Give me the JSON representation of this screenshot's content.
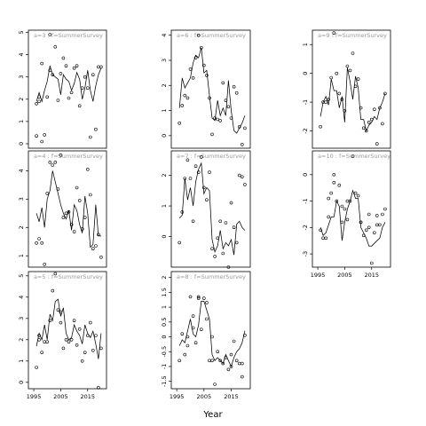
{
  "figure": {
    "xlabel": "Year",
    "xticks": [
      1995,
      2005,
      2015
    ]
  },
  "chart_data": [
    {
      "type": "line",
      "title": "a=3 : f=SummerSurvey",
      "xlim": [
        1993,
        2022
      ],
      "ylim": [
        -0.2,
        5.1
      ],
      "yticks": [
        0,
        1,
        2,
        3,
        4,
        5
      ],
      "series": [
        {
          "style": "line",
          "x": [
            1996,
            1997,
            1998,
            1999,
            2000,
            2001,
            2002,
            2003,
            2004,
            2005,
            2006,
            2007,
            2008,
            2009,
            2010,
            2011,
            2012,
            2013,
            2014,
            2015,
            2016,
            2017,
            2018,
            2019,
            2020
          ],
          "y": [
            1.9,
            2.3,
            1.9,
            2.4,
            2.8,
            3.5,
            3.1,
            3.0,
            2.9,
            2.2,
            3.1,
            2.9,
            2.8,
            2.4,
            2.7,
            3.2,
            2.9,
            2.0,
            2.5,
            3.3,
            2.4,
            1.9,
            2.6,
            3.1,
            3.4
          ]
        },
        {
          "style": "points",
          "x": [
            1996,
            1997,
            1998,
            1999,
            2000,
            2001,
            2002,
            2003,
            2004,
            2005,
            2006,
            2007,
            2008,
            2009,
            2010,
            2011,
            2012,
            2013,
            2014,
            2015,
            2016,
            2017,
            2018,
            2019,
            2020,
            1996,
            1997,
            1998,
            2001
          ],
          "y": [
            0.35,
            1.9,
            0.1,
            0.4,
            2.1,
            4.9,
            3.1,
            4.35,
            1.95,
            3.15,
            3.85,
            3.5,
            2.05,
            2.3,
            3.4,
            3.5,
            1.7,
            2.5,
            3.0,
            2.5,
            0.3,
            3.1,
            0.65,
            3.45,
            3.45,
            1.8,
            2.1,
            3.6,
            3.3
          ]
        }
      ]
    },
    {
      "type": "line",
      "title": "a=4 : f=SummerSurvey",
      "xlim": [
        1993,
        2022
      ],
      "ylim": [
        0.6,
        4.7
      ],
      "yticks": [
        1,
        2,
        3,
        4
      ],
      "series": [
        {
          "style": "line",
          "x": [
            1996,
            1997,
            1998,
            1999,
            2000,
            2001,
            2002,
            2003,
            2004,
            2005,
            2006,
            2007,
            2008,
            2009,
            2010,
            2011,
            2012,
            2013,
            2014,
            2015,
            2016,
            2017,
            2018,
            2019,
            2020
          ],
          "y": [
            2.5,
            2.2,
            2.7,
            2.0,
            3.0,
            3.3,
            4.0,
            3.6,
            3.2,
            2.8,
            2.5,
            2.3,
            2.6,
            1.9,
            2.8,
            2.6,
            2.1,
            1.8,
            3.1,
            2.5,
            1.3,
            1.4,
            2.8,
            1.7,
            1.7
          ]
        },
        {
          "style": "points",
          "x": [
            1996,
            1997,
            1998,
            1999,
            2000,
            2001,
            2002,
            2003,
            2004,
            2005,
            2006,
            2007,
            2008,
            2009,
            2010,
            2011,
            2012,
            2013,
            2014,
            2015,
            2016,
            2017,
            2018,
            2019,
            2020
          ],
          "y": [
            1.45,
            1.6,
            1.45,
            0.7,
            3.2,
            4.3,
            4.2,
            4.3,
            3.35,
            4.55,
            2.35,
            2.5,
            2.55,
            2.1,
            1.85,
            3.4,
            2.95,
            1.95,
            2.35,
            4.05,
            3.15,
            1.25,
            1.35,
            1.75,
            0.95
          ]
        }
      ]
    },
    {
      "type": "line",
      "title": "a=5 : f=SummerSurvey",
      "xlim": [
        1993,
        2022
      ],
      "ylim": [
        -0.3,
        5.2
      ],
      "yticks": [
        0,
        1,
        2,
        3,
        4,
        5
      ],
      "series": [
        {
          "style": "line",
          "x": [
            1996,
            1997,
            1998,
            1999,
            2000,
            2001,
            2002,
            2003,
            2004,
            2005,
            2006,
            2007,
            2008,
            2009,
            2010,
            2011,
            2012,
            2013,
            2014,
            2015,
            2016,
            2017,
            2018,
            2019,
            2020
          ],
          "y": [
            1.7,
            2.3,
            2.0,
            2.7,
            2.0,
            3.2,
            2.9,
            3.8,
            3.9,
            3.1,
            3.5,
            2.3,
            2.0,
            2.1,
            2.7,
            2.4,
            2.2,
            1.8,
            2.7,
            2.3,
            2.1,
            2.4,
            1.8,
            1.1,
            2.3
          ]
        },
        {
          "style": "points",
          "x": [
            1996,
            1997,
            1998,
            1999,
            2000,
            2001,
            2002,
            2003,
            2004,
            2005,
            2006,
            2007,
            2008,
            2009,
            2010,
            2011,
            2012,
            2013,
            2014,
            2015,
            2016,
            2017,
            2018,
            2019,
            2020,
            1997,
            2005
          ],
          "y": [
            0.7,
            2.0,
            1.4,
            1.9,
            1.9,
            2.9,
            4.3,
            5.1,
            3.4,
            3.3,
            1.6,
            2.0,
            1.9,
            2.0,
            2.9,
            1.75,
            2.5,
            1.0,
            1.4,
            2.2,
            2.8,
            1.5,
            2.2,
            -0.25,
            1.6,
            2.2,
            2.8
          ]
        }
      ]
    },
    {
      "type": "line",
      "title": "a=6 : f=SummerSurvey",
      "xlim": [
        1993,
        2022
      ],
      "ylim": [
        -0.5,
        4.2
      ],
      "yticks": [
        0,
        1,
        2,
        3,
        4
      ],
      "series": [
        {
          "style": "line",
          "x": [
            1996,
            1997,
            1998,
            1999,
            2000,
            2001,
            2002,
            2003,
            2004,
            2005,
            2006,
            2007,
            2008,
            2009,
            2010,
            2011,
            2012,
            2013,
            2014,
            2015,
            2016,
            2017,
            2018,
            2019,
            2020
          ],
          "y": [
            1.1,
            2.3,
            1.9,
            2.1,
            2.3,
            2.9,
            3.2,
            3.1,
            3.5,
            2.5,
            2.6,
            1.6,
            0.7,
            0.6,
            1.4,
            0.8,
            1.1,
            0.8,
            2.2,
            1.0,
            0.2,
            0.1,
            0.3,
            0.5,
            0.8
          ]
        },
        {
          "style": "points",
          "x": [
            1996,
            1997,
            1998,
            1999,
            2000,
            2001,
            2002,
            2003,
            2004,
            2005,
            2006,
            2007,
            2008,
            2009,
            2010,
            2011,
            2012,
            2013,
            2014,
            2015,
            2016,
            2017,
            2018,
            2019,
            2020
          ],
          "y": [
            0.5,
            1.2,
            1.6,
            1.5,
            2.65,
            2.3,
            3.1,
            4.0,
            3.5,
            2.8,
            2.4,
            1.5,
            0.05,
            0.7,
            0.65,
            0.6,
            2.1,
            1.4,
            1.15,
            0.7,
            1.95,
            1.7,
            0.35,
            -0.35,
            0.3
          ]
        }
      ]
    },
    {
      "type": "line",
      "title": "a=7 : f=SummerSurvey",
      "xlim": [
        1993,
        2022
      ],
      "ylim": [
        -1.0,
        2.8
      ],
      "yticks": [
        0,
        1,
        2
      ],
      "series": [
        {
          "style": "line",
          "x": [
            1996,
            1997,
            1998,
            1999,
            2000,
            2001,
            2002,
            2003,
            2004,
            2005,
            2006,
            2007,
            2008,
            2009,
            2010,
            2011,
            2012,
            2013,
            2014,
            2015,
            2016,
            2017,
            2018,
            2019,
            2020
          ],
          "y": [
            0.6,
            0.7,
            1.9,
            1.2,
            1.6,
            1.0,
            1.8,
            2.2,
            2.4,
            1.4,
            1.6,
            1.5,
            -0.1,
            -0.5,
            -0.3,
            0.2,
            -0.4,
            -0.2,
            -0.3,
            -0.1,
            -0.6,
            0.4,
            0.5,
            0.3,
            0.2
          ]
        },
        {
          "style": "points",
          "x": [
            1996,
            1997,
            1998,
            1999,
            2000,
            2001,
            2002,
            2003,
            2004,
            2005,
            2006,
            2007,
            2008,
            2009,
            2010,
            2011,
            2012,
            2013,
            2014,
            2015,
            2016,
            2017,
            2018,
            2019,
            2020
          ],
          "y": [
            -0.2,
            0.8,
            1.9,
            2.5,
            1.9,
            0.5,
            2.3,
            2.1,
            2.6,
            1.6,
            1.2,
            2.1,
            -0.4,
            -0.65,
            -0.05,
            0.5,
            -0.55,
            0.45,
            -1.0,
            1.1,
            0.3,
            -0.2,
            2.0,
            1.95,
            1.7
          ]
        }
      ]
    },
    {
      "type": "line",
      "title": "a=8 : f=SummerSurvey",
      "xlim": [
        1993,
        2022
      ],
      "ylim": [
        -1.75,
        2.2
      ],
      "yticks": [
        -1.5,
        -1.0,
        -0.5,
        0.0,
        0.5,
        1.0,
        1.5,
        2.0
      ],
      "series": [
        {
          "style": "line",
          "x": [
            1996,
            1997,
            1998,
            1999,
            2000,
            2001,
            2002,
            2003,
            2004,
            2005,
            2006,
            2007,
            2008,
            2009,
            2010,
            2011,
            2012,
            2013,
            2014,
            2015,
            2016,
            2017,
            2018,
            2019,
            2020
          ],
          "y": [
            -0.3,
            -0.1,
            -0.2,
            0.2,
            0.6,
            0.1,
            0.0,
            0.4,
            1.2,
            1.2,
            0.9,
            0.6,
            -0.6,
            -0.8,
            -0.7,
            -0.8,
            -0.9,
            -0.6,
            -0.8,
            -1.0,
            -0.7,
            -0.5,
            -0.4,
            -0.2,
            0.2
          ]
        },
        {
          "style": "points",
          "x": [
            1996,
            1997,
            1998,
            1999,
            2000,
            2001,
            2002,
            2003,
            2004,
            2005,
            2006,
            2007,
            2008,
            2009,
            2010,
            2011,
            2012,
            2013,
            2014,
            2015,
            2016,
            2017,
            2018,
            2019,
            2020,
            1999,
            2001,
            2003,
            2006,
            2008,
            2015,
            2019
          ],
          "y": [
            -0.8,
            0.1,
            -0.6,
            0.0,
            1.35,
            0.7,
            -0.2,
            1.3,
            0.25,
            1.3,
            0.6,
            -0.8,
            -0.8,
            -1.6,
            -0.5,
            -0.8,
            -0.9,
            -0.7,
            -1.1,
            -1.0,
            -0.15,
            -0.8,
            -0.9,
            -1.35,
            0.05,
            -0.3,
            0.3,
            1.35,
            1.15,
            0.0,
            -0.6,
            -0.9
          ]
        }
      ]
    },
    {
      "type": "line",
      "title": "a=9 : f=SummerSurvey",
      "xlim": [
        1993,
        2022
      ],
      "ylim": [
        -2.6,
        1.5
      ],
      "yticks": [
        -2,
        -1,
        0,
        1
      ],
      "series": [
        {
          "style": "line",
          "x": [
            1996,
            1997,
            1998,
            1999,
            2000,
            2001,
            2002,
            2003,
            2004,
            2005,
            2006,
            2007,
            2008,
            2009,
            2010,
            2011,
            2012,
            2013,
            2014,
            2015,
            2016,
            2017,
            2018,
            2019,
            2020
          ],
          "y": [
            -1.5,
            -1.0,
            -0.8,
            -1.1,
            -0.2,
            -0.6,
            -0.6,
            -1.2,
            -0.8,
            -1.7,
            0.2,
            -0.3,
            -0.9,
            -0.1,
            -0.5,
            -1.6,
            -1.6,
            -2.0,
            -1.8,
            -1.7,
            -1.5,
            -1.6,
            -1.2,
            -1.0,
            -0.7
          ]
        },
        {
          "style": "points",
          "x": [
            1996,
            1997,
            1998,
            1999,
            2000,
            2001,
            2002,
            2003,
            2004,
            2005,
            2006,
            2007,
            2008,
            2009,
            2010,
            2011,
            2012,
            2013,
            2014,
            2015,
            2016,
            2017,
            2018,
            2019,
            2020
          ],
          "y": [
            -1.85,
            -1.0,
            -1.0,
            -0.9,
            -0.15,
            1.4,
            0.0,
            -0.7,
            -0.9,
            -1.3,
            0.25,
            0.1,
            0.7,
            -0.45,
            -0.2,
            -1.2,
            -1.9,
            -2.0,
            -1.7,
            -1.6,
            -1.25,
            -2.45,
            -1.2,
            -1.75,
            -0.7
          ]
        }
      ]
    },
    {
      "type": "line",
      "title": "a=10 : f=SummerSurvey",
      "xlim": [
        1993,
        2022
      ],
      "ylim": [
        -3.5,
        0.9
      ],
      "yticks": [
        -3,
        -2,
        -1,
        0
      ],
      "series": [
        {
          "style": "line",
          "x": [
            1996,
            1997,
            1998,
            1999,
            2000,
            2001,
            2002,
            2003,
            2004,
            2005,
            2006,
            2007,
            2008,
            2009,
            2010,
            2011,
            2012,
            2013,
            2014,
            2015,
            2016,
            2017,
            2018,
            2019,
            2020
          ],
          "y": [
            -2.0,
            -2.3,
            -2.2,
            -1.9,
            -1.6,
            -1.6,
            -1.0,
            -1.2,
            -2.5,
            -1.8,
            -1.3,
            -1.0,
            -0.6,
            -0.9,
            -0.9,
            -2.0,
            -2.2,
            -2.4,
            -2.7,
            -2.7,
            -2.6,
            -2.5,
            -2.4,
            -2.0,
            -1.8
          ]
        },
        {
          "style": "points",
          "x": [
            1996,
            1997,
            1998,
            1999,
            2000,
            2001,
            2002,
            2003,
            2004,
            2005,
            2006,
            2007,
            2008,
            2009,
            2010,
            2011,
            2012,
            2013,
            2014,
            2015,
            2016,
            2017,
            2018,
            2019,
            2020,
            1999,
            2001,
            2004,
            2006,
            2011,
            2014,
            2017
          ],
          "y": [
            -2.1,
            -2.4,
            -2.4,
            -1.6,
            -0.7,
            0.0,
            -1.0,
            -0.4,
            -1.8,
            -1.3,
            -1.7,
            -1.0,
            0.7,
            -0.7,
            -0.8,
            -1.8,
            -2.3,
            -2.1,
            -1.5,
            -3.35,
            -2.2,
            -1.9,
            -1.9,
            -1.5,
            -1.3,
            -0.9,
            -0.3,
            -1.2,
            -1.0,
            -1.8,
            -2.0,
            -1.55
          ]
        }
      ]
    }
  ]
}
